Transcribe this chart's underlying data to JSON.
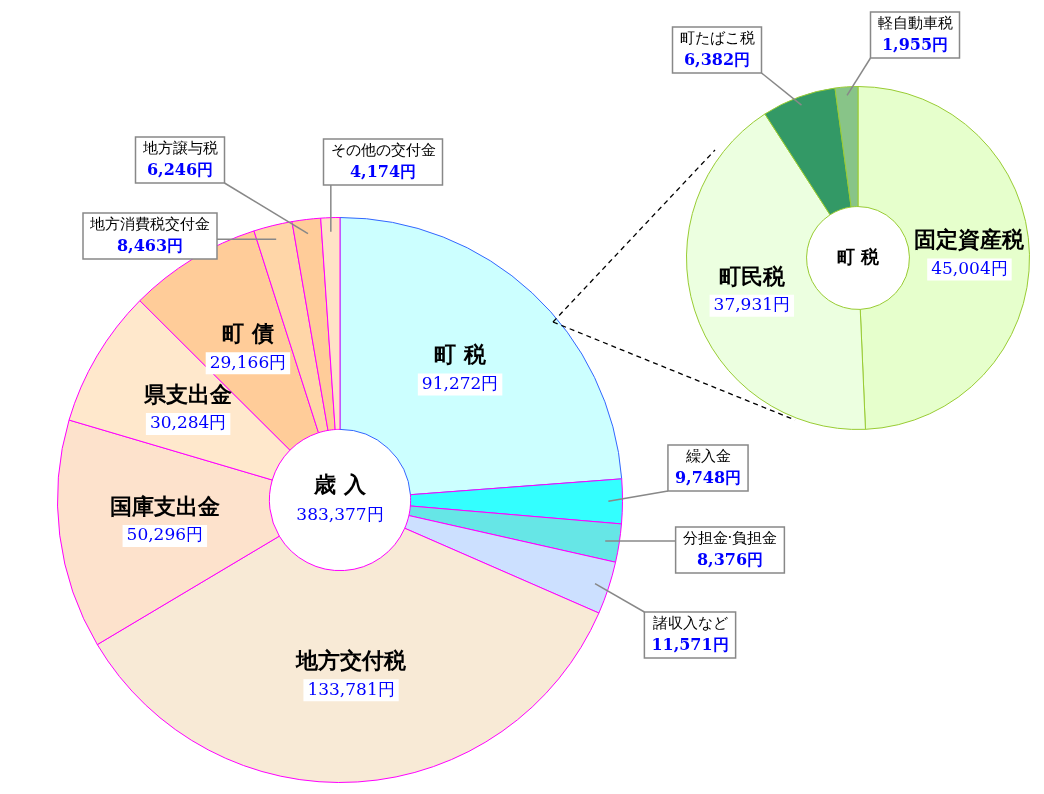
{
  "chart_data": [
    {
      "type": "donut",
      "title": "歳 入",
      "subtitle": "383,377円",
      "categories": [
        "町 税",
        "繰入金",
        "分担金·負担金",
        "諸収入など",
        "地方交付税",
        "国庫支出金",
        "県支出金",
        "町 債",
        "地方消費税交付金",
        "地方譲与税",
        "その他の交付金"
      ],
      "values": [
        91272,
        9748,
        8376,
        11571,
        133781,
        50296,
        30284,
        29166,
        8463,
        6246,
        4174
      ],
      "value_labels": [
        "91,272円",
        "9,748円",
        "8,376円",
        "11,571円",
        "133,781円",
        "50,296円",
        "30,284円",
        "29,166円",
        "8,463円",
        "6,246円",
        "4,174円"
      ],
      "colors": [
        "#ccffff",
        "#33ffff",
        "#66e6e6",
        "#cce0ff",
        "#f8ead6",
        "#fde2cc",
        "#ffe8cc",
        "#ffcc99",
        "#ffd6a8",
        "#ffcc99",
        "#ffe2c6"
      ]
    },
    {
      "type": "donut",
      "title": "町 税",
      "categories": [
        "固定資産税",
        "町民税",
        "町たばこ税",
        "軽自動車税"
      ],
      "values": [
        45004,
        37931,
        6382,
        1955
      ],
      "value_labels": [
        "45,004円",
        "37,931円",
        "6,382円",
        "1,955円"
      ],
      "colors": [
        "#e6ffcc",
        "#ecffe0",
        "#339966",
        "#88c488"
      ]
    }
  ]
}
